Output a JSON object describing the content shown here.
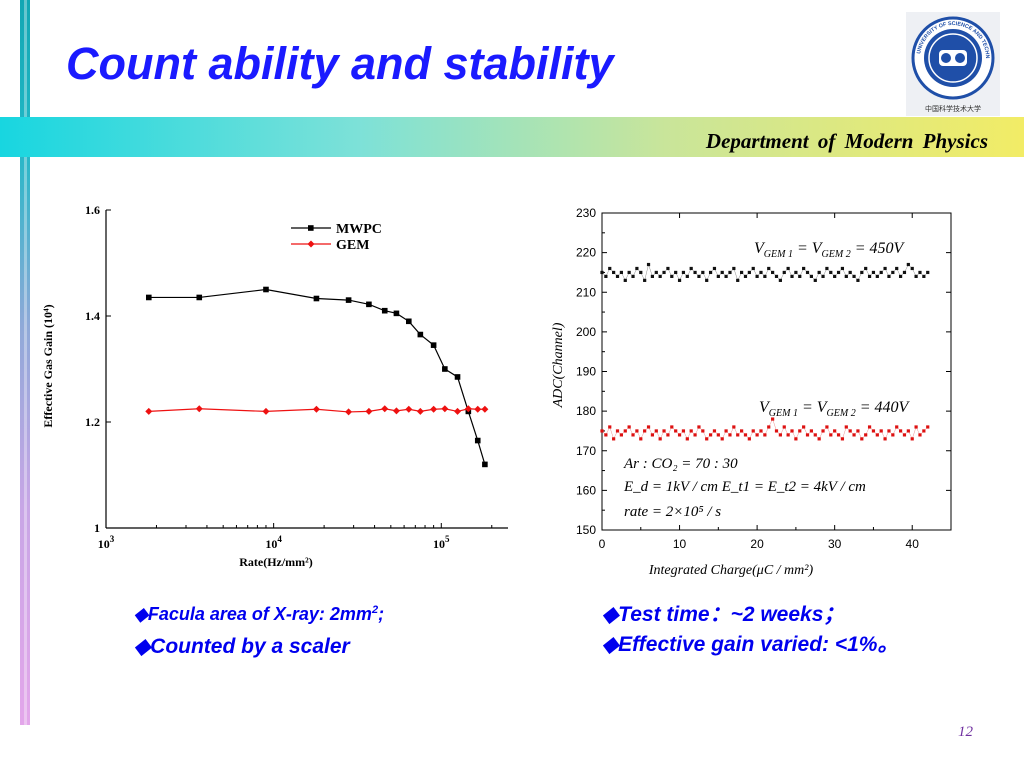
{
  "slide": {
    "title": "Count ability and stability",
    "department": "Department  of  Modern  Physics",
    "page_number": "12",
    "logo_text": "UNIVERSITY OF SCIENCE AND TECHNOLOGY OF CHINA",
    "logo_chinese": "中国科学技术大学",
    "accent_colors": {
      "title": "#1a1aff",
      "band_left": "#18d6e0",
      "band_right": "#f2ec66",
      "page_number": "#7030a0"
    }
  },
  "notes_left": {
    "line1_main": "Facula area of X-ray: 2mm",
    "line1_sup": "2",
    "line1_end": ";",
    "line2": "Counted by a scaler",
    "bullet": "◆"
  },
  "notes_right": {
    "line1": "Test time：~2 weeks；",
    "line2": "Effective gain varied: <1%。",
    "bullet": "◆"
  },
  "chart_data": [
    {
      "type": "line",
      "xlabel": "Rate(Hz/mm²)",
      "ylabel": "Effective Gas Gain (10⁴)",
      "x_scale": "log",
      "xlim": [
        1000,
        250000
      ],
      "ylim": [
        1.0,
        1.6
      ],
      "x_ticks": [
        {
          "value": 1000,
          "base": "10",
          "exp": "3"
        },
        {
          "value": 10000,
          "base": "10",
          "exp": "4"
        },
        {
          "value": 100000,
          "base": "10",
          "exp": "5"
        }
      ],
      "y_ticks": [
        "1",
        "1.2",
        "1.4",
        "1.6"
      ],
      "y_tick_values": [
        1.0,
        1.2,
        1.4,
        1.6
      ],
      "legend_position": "top-center",
      "series": [
        {
          "name": "MWPC",
          "color": "#000000",
          "marker": "square",
          "x": [
            1800,
            3600,
            9000,
            18000,
            28000,
            37000,
            46000,
            54000,
            64000,
            75000,
            90000,
            105000,
            125000,
            145000,
            165000,
            182000
          ],
          "y": [
            1.435,
            1.435,
            1.45,
            1.433,
            1.43,
            1.422,
            1.41,
            1.405,
            1.39,
            1.365,
            1.345,
            1.3,
            1.285,
            1.22,
            1.165,
            1.12
          ]
        },
        {
          "name": "GEM",
          "color": "#ee1111",
          "marker": "diamond",
          "x": [
            1800,
            3600,
            9000,
            18000,
            28000,
            37000,
            46000,
            54000,
            64000,
            75000,
            90000,
            105000,
            125000,
            145000,
            165000,
            182000
          ],
          "y": [
            1.22,
            1.225,
            1.22,
            1.224,
            1.219,
            1.22,
            1.225,
            1.221,
            1.224,
            1.22,
            1.224,
            1.225,
            1.22,
            1.225,
            1.224,
            1.224
          ]
        }
      ]
    },
    {
      "type": "scatter",
      "xlabel": "Integrated Charge(μC / mm²)",
      "ylabel": "ADC(Channel)",
      "xlim": [
        0,
        45
      ],
      "ylim": [
        150,
        230
      ],
      "x_ticks": [
        "0",
        "10",
        "20",
        "30",
        "40"
      ],
      "x_tick_values": [
        0,
        10,
        20,
        30,
        40
      ],
      "y_ticks": [
        "150",
        "160",
        "170",
        "180",
        "190",
        "200",
        "210",
        "220",
        "230"
      ],
      "y_tick_values": [
        150,
        160,
        170,
        180,
        190,
        200,
        210,
        220,
        230
      ],
      "annotations": {
        "upper": "V_GEM1 = V_GEM2 = 450V",
        "lower": "V_GEM1 = V_GEM2 = 440V",
        "gas": "Ar : CO₂ = 70 : 30",
        "fields": "E_d = 1kV / cm   E_t1 = E_t2 = 4kV / cm",
        "rate": "rate = 2×10⁵ / s"
      },
      "series": [
        {
          "name": "",
          "color": "#111111",
          "x": [
            0,
            0.5,
            1,
            1.5,
            2,
            2.5,
            3,
            3.5,
            4,
            4.5,
            5,
            5.5,
            6,
            6.5,
            7,
            7.5,
            8,
            8.5,
            9,
            9.5,
            10,
            10.5,
            11,
            11.5,
            12,
            12.5,
            13,
            13.5,
            14,
            14.5,
            15,
            15.5,
            16,
            16.5,
            17,
            17.5,
            18,
            18.5,
            19,
            19.5,
            20,
            20.5,
            21,
            21.5,
            22,
            22.5,
            23,
            23.5,
            24,
            24.5,
            25,
            25.5,
            26,
            26.5,
            27,
            27.5,
            28,
            28.5,
            29,
            29.5,
            30,
            30.5,
            31,
            31.5,
            32,
            32.5,
            33,
            33.5,
            34,
            34.5,
            35,
            35.5,
            36,
            36.5,
            37,
            37.5,
            38,
            38.5,
            39,
            39.5,
            40,
            40.5,
            41,
            41.5,
            42
          ],
          "y": [
            215,
            214,
            216,
            215,
            214,
            215,
            213,
            215,
            214,
            216,
            215,
            213,
            217,
            214,
            215,
            214,
            215,
            216,
            214,
            215,
            213,
            215,
            214,
            216,
            215,
            214,
            215,
            213,
            215,
            216,
            214,
            215,
            214,
            215,
            216,
            213,
            215,
            214,
            215,
            216,
            214,
            215,
            214,
            216,
            215,
            214,
            213,
            215,
            216,
            214,
            215,
            214,
            216,
            215,
            214,
            213,
            215,
            214,
            216,
            215,
            214,
            215,
            216,
            214,
            215,
            214,
            213,
            215,
            216,
            214,
            215,
            214,
            215,
            216,
            214,
            215,
            216,
            214,
            215,
            217,
            216,
            214,
            215,
            214,
            215
          ]
        },
        {
          "name": "",
          "color": "#dd1111",
          "x": [
            0,
            0.5,
            1,
            1.5,
            2,
            2.5,
            3,
            3.5,
            4,
            4.5,
            5,
            5.5,
            6,
            6.5,
            7,
            7.5,
            8,
            8.5,
            9,
            9.5,
            10,
            10.5,
            11,
            11.5,
            12,
            12.5,
            13,
            13.5,
            14,
            14.5,
            15,
            15.5,
            16,
            16.5,
            17,
            17.5,
            18,
            18.5,
            19,
            19.5,
            20,
            20.5,
            21,
            21.5,
            22,
            22.5,
            23,
            23.5,
            24,
            24.5,
            25,
            25.5,
            26,
            26.5,
            27,
            27.5,
            28,
            28.5,
            29,
            29.5,
            30,
            30.5,
            31,
            31.5,
            32,
            32.5,
            33,
            33.5,
            34,
            34.5,
            35,
            35.5,
            36,
            36.5,
            37,
            37.5,
            38,
            38.5,
            39,
            39.5,
            40,
            40.5,
            41,
            41.5,
            42
          ],
          "y": [
            175,
            174,
            176,
            173,
            175,
            174,
            175,
            176,
            174,
            175,
            173,
            175,
            176,
            174,
            175,
            173,
            175,
            174,
            176,
            175,
            174,
            175,
            173,
            175,
            174,
            176,
            175,
            173,
            174,
            175,
            174,
            173,
            175,
            174,
            176,
            174,
            175,
            174,
            173,
            175,
            174,
            175,
            174,
            176,
            178,
            175,
            174,
            176,
            174,
            175,
            173,
            175,
            176,
            174,
            175,
            174,
            173,
            175,
            176,
            174,
            175,
            174,
            173,
            176,
            175,
            174,
            175,
            173,
            174,
            176,
            175,
            174,
            175,
            173,
            175,
            174,
            176,
            175,
            174,
            175,
            173,
            176,
            174,
            175,
            176
          ]
        }
      ]
    }
  ]
}
